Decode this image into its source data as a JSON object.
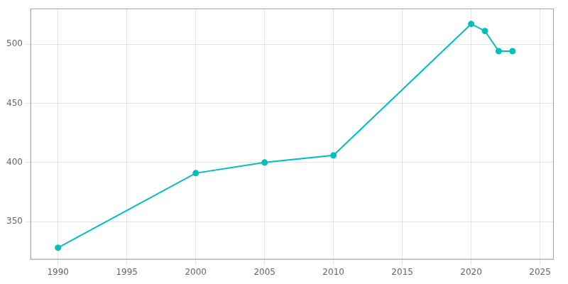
{
  "chart_data": {
    "type": "line",
    "x": [
      1990,
      2000,
      2005,
      2010,
      2020,
      2021,
      2022,
      2023
    ],
    "values": [
      328,
      391,
      400,
      406,
      517,
      511,
      494,
      494
    ],
    "color": "#00BFBF",
    "marker": "circle",
    "xlim": [
      1988,
      2026
    ],
    "ylim": [
      318,
      530
    ],
    "xticks": [
      1990,
      1995,
      2000,
      2005,
      2010,
      2015,
      2020,
      2025
    ],
    "yticks": [
      350,
      400,
      450,
      500
    ],
    "grid": true
  }
}
